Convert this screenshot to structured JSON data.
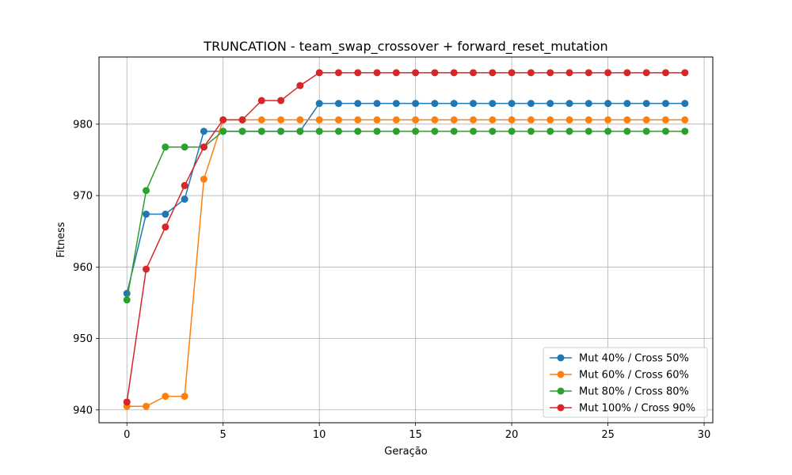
{
  "chart_data": {
    "type": "line",
    "title": "TRUNCATION - team_swap_crossover + forward_reset_mutation",
    "xlabel": "Geração",
    "ylabel": "Fitness",
    "xlim": [
      -1.45,
      30.45
    ],
    "ylim": [
      938.2,
      989.4
    ],
    "xticks": [
      0,
      5,
      10,
      15,
      20,
      25,
      30
    ],
    "yticks": [
      940,
      950,
      960,
      970,
      980
    ],
    "grid": true,
    "legend_position": "lower-right",
    "x": [
      0,
      1,
      2,
      3,
      4,
      5,
      6,
      7,
      8,
      9,
      10,
      11,
      12,
      13,
      14,
      15,
      16,
      17,
      18,
      19,
      20,
      21,
      22,
      23,
      24,
      25,
      26,
      27,
      28,
      29
    ],
    "series": [
      {
        "name": "Mut 40% / Cross 50%",
        "color": "#1f77b4",
        "values": [
          956.3,
          967.4,
          967.4,
          969.5,
          979.0,
          979.0,
          979.0,
          979.0,
          979.0,
          979.0,
          982.9,
          982.9,
          982.9,
          982.9,
          982.9,
          982.9,
          982.9,
          982.9,
          982.9,
          982.9,
          982.9,
          982.9,
          982.9,
          982.9,
          982.9,
          982.9,
          982.9,
          982.9,
          982.9,
          982.9
        ]
      },
      {
        "name": "Mut 60% / Cross 60%",
        "color": "#ff7f0e",
        "values": [
          940.5,
          940.5,
          941.9,
          941.9,
          972.3,
          980.6,
          980.6,
          980.6,
          980.6,
          980.6,
          980.6,
          980.6,
          980.6,
          980.6,
          980.6,
          980.6,
          980.6,
          980.6,
          980.6,
          980.6,
          980.6,
          980.6,
          980.6,
          980.6,
          980.6,
          980.6,
          980.6,
          980.6,
          980.6,
          980.6
        ]
      },
      {
        "name": "Mut 80% / Cross 80%",
        "color": "#2ca02c",
        "values": [
          955.4,
          970.7,
          976.8,
          976.8,
          976.8,
          979.0,
          979.0,
          979.0,
          979.0,
          979.0,
          979.0,
          979.0,
          979.0,
          979.0,
          979.0,
          979.0,
          979.0,
          979.0,
          979.0,
          979.0,
          979.0,
          979.0,
          979.0,
          979.0,
          979.0,
          979.0,
          979.0,
          979.0,
          979.0,
          979.0
        ]
      },
      {
        "name": "Mut 100% / Cross 90%",
        "color": "#d62728",
        "values": [
          941.1,
          959.7,
          965.6,
          971.4,
          976.8,
          980.6,
          980.6,
          983.3,
          983.3,
          985.4,
          987.2,
          987.2,
          987.2,
          987.2,
          987.2,
          987.2,
          987.2,
          987.2,
          987.2,
          987.2,
          987.2,
          987.2,
          987.2,
          987.2,
          987.2,
          987.2,
          987.2,
          987.2,
          987.2,
          987.2
        ]
      }
    ]
  }
}
